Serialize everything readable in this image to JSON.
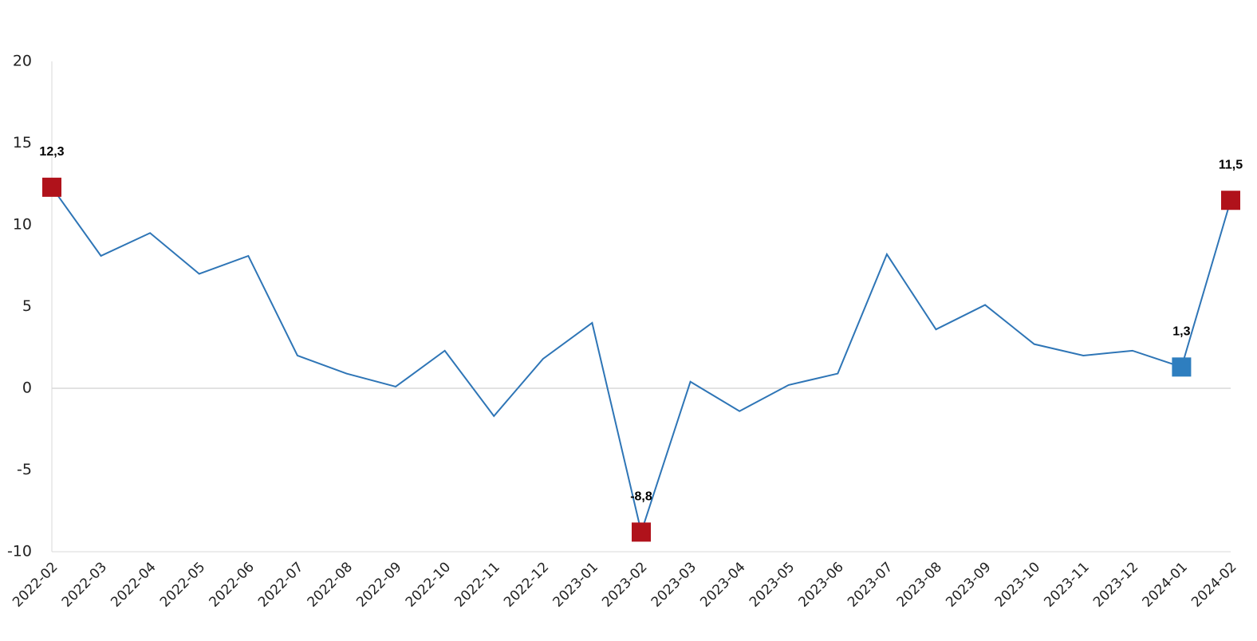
{
  "chart_data": {
    "type": "line",
    "categories": [
      "2022-02",
      "2022-03",
      "2022-04",
      "2022-05",
      "2022-06",
      "2022-07",
      "2022-08",
      "2022-09",
      "2022-10",
      "2022-11",
      "2022-12",
      "2023-01",
      "2023-02",
      "2023-03",
      "2023-04",
      "2023-05",
      "2023-06",
      "2023-07",
      "2023-08",
      "2023-09",
      "2023-10",
      "2023-11",
      "2023-12",
      "2024-01",
      "2024-02"
    ],
    "values": [
      12.3,
      8.1,
      9.5,
      7.0,
      8.1,
      2.0,
      0.9,
      0.1,
      2.3,
      -1.7,
      1.8,
      4.0,
      -8.8,
      0.4,
      -1.4,
      0.2,
      0.9,
      8.2,
      3.6,
      5.1,
      2.7,
      2.0,
      2.3,
      1.3,
      11.5
    ],
    "value_labels": [
      "12,3",
      null,
      null,
      null,
      null,
      null,
      null,
      null,
      null,
      null,
      null,
      null,
      "-8,8",
      null,
      null,
      null,
      null,
      null,
      null,
      null,
      null,
      null,
      null,
      "1,3",
      "11,5"
    ],
    "marker_colors": [
      "#b0121b",
      null,
      null,
      null,
      null,
      null,
      null,
      null,
      null,
      null,
      null,
      null,
      "#b0121b",
      null,
      null,
      null,
      null,
      null,
      null,
      null,
      null,
      null,
      null,
      "#2e7ebf",
      "#b0121b"
    ],
    "color": "#2e75b6",
    "ylim": [
      -10,
      20
    ],
    "yticks": [
      20,
      15,
      10,
      5,
      0,
      -5,
      -10
    ],
    "zero_line": true
  }
}
